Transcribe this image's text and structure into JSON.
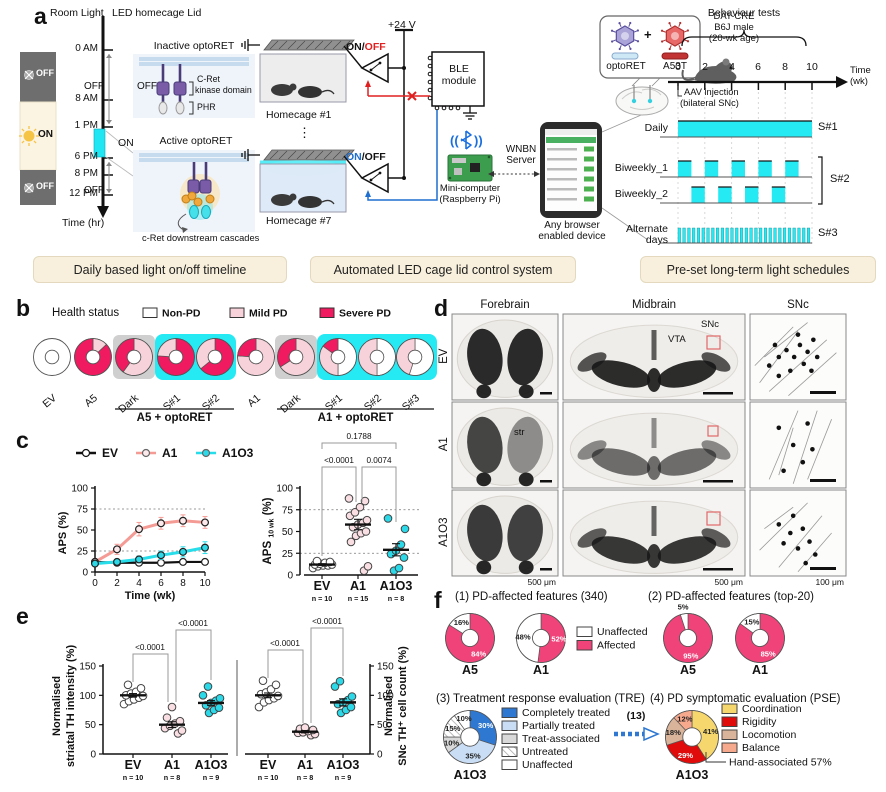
{
  "figure": {
    "panel_labels": {
      "a": "a",
      "b": "b",
      "c": "c",
      "d": "d",
      "e": "e",
      "f": "f"
    }
  },
  "colors": {
    "severe_pd": "#EF1A5F",
    "mild_pd": "#F7D2DA",
    "non_pd": "#FFFFFF",
    "affected": "#F0437A",
    "cyan": "#25E9F3",
    "gray_bg": "#CFCFCF",
    "beige": "#F8F0DC",
    "blue_complete": "#2E78D2",
    "blue_partial": "#C9DDF4",
    "gray_treat": "#D9D9D9",
    "yellow_coordination": "#F5D76E",
    "red_rigidity": "#E00B0B",
    "tan_locomotion": "#D9B49A",
    "salmon_balance": "#F6A98D"
  },
  "panel_a": {
    "room_light": "Room Light",
    "led_lid": "LED homecage Lid",
    "ticks": [
      "0 AM",
      "8 AM",
      "1 PM",
      "6 PM",
      "8 PM",
      "12 PM"
    ],
    "time_hr": "Time (hr)",
    "room_off1": "OFF",
    "room_on": "ON",
    "room_off2": "OFF",
    "lid_off1": "OFF",
    "lid_on": "ON",
    "lid_off2": "OFF",
    "inactive_title": "Inactive optoRET",
    "off_label": "OFF",
    "cret1": "C-Ret",
    "cret2": "kinase domain",
    "phr": "PHR",
    "active_title": "Active optoRET",
    "cascades": "c-Ret downstream cascades",
    "supply": "+24 V",
    "on1": "ON",
    "sep1": "/",
    "off1": "OFF",
    "on2": "ON",
    "sep2": "/",
    "off2": "OFF",
    "ble1": "BLE",
    "ble2": "module",
    "homecage1": "Homecage #1",
    "dots": "⋮",
    "homecage7": "Homecage #7",
    "mini1": "Mini-computer",
    "mini2": "(Raspberry Pi)",
    "wnbn1": "WNBN",
    "wnbn2": "Server",
    "browser1": "Any browser",
    "browser2": "enabled device",
    "virus_opto": "optoRET",
    "plus": "+",
    "virus_a53t": "A53T",
    "mouse1": "DAT-CRE",
    "mouse2": "B6J male",
    "mouse3": "(20-wk age)",
    "aav1": "AAV injection",
    "aav2": "(bilateral SNc)",
    "behaviour": "Behaviour tests",
    "weeks": [
      "0",
      "2",
      "4",
      "6",
      "8",
      "10"
    ],
    "time_wk1": "Time",
    "time_wk2": "(wk)",
    "sched": {
      "daily": "Daily",
      "biw1": "Biweekly_1",
      "biw2": "Biweekly_2",
      "alt1": "Alternate",
      "alt2": "days",
      "s1": "S#1",
      "s2": "S#2",
      "s3": "S#3",
      "patterns": {
        "daily": [
          [
            0,
            10
          ]
        ],
        "biweekly_1": [
          [
            0,
            1
          ],
          [
            2,
            3
          ],
          [
            4,
            5
          ],
          [
            6,
            7
          ],
          [
            8,
            9
          ]
        ],
        "biweekly_2": [
          [
            1,
            2
          ],
          [
            3,
            4
          ],
          [
            5,
            6
          ],
          [
            7,
            8
          ]
        ],
        "alternate_stripes": 28
      }
    },
    "captions": [
      "Daily based light on/off timeline",
      "Automated LED cage lid control system",
      "Pre-set long-term light schedules"
    ]
  },
  "panel_b": {
    "legend_title": "Health status"
  },
  "panel_d": {
    "cols": [
      "Forebrain",
      "Midbrain",
      "SNc"
    ],
    "rows": [
      "EV",
      "A1",
      "A1O3"
    ],
    "vta": "VTA",
    "snc": "SNc",
    "str": "str",
    "scale1": "500 μm",
    "scale2": "500 μm",
    "scale3": "100 μm"
  },
  "panel_f": {
    "t1": "(1) PD-affected features (340)",
    "t2": "(2) PD-affected features (top-20)",
    "t3": "(3) Treatment response evaluation (TRE)",
    "t4": "(4) PD symptomatic evaluation (PSE)"
  },
  "chart_data": [
    {
      "id": "health_status",
      "type": "pie",
      "panel": "b",
      "title": "Health status",
      "legend": [
        {
          "name": "Non-PD",
          "color": "#FFFFFF"
        },
        {
          "name": "Mild PD",
          "color": "#F7D2DA"
        },
        {
          "name": "Severe PD",
          "color": "#EF1A5F"
        }
      ],
      "donuts": [
        {
          "label": "EV",
          "background": "none",
          "segments": [
            {
              "name": "Non-PD",
              "value": 100
            }
          ]
        },
        {
          "label": "A5",
          "background": "none",
          "segments": [
            {
              "name": "Mild PD",
              "value": 13
            },
            {
              "name": "Severe PD",
              "value": 87
            }
          ]
        },
        {
          "label": "Dark",
          "background": "gray",
          "segments": [
            {
              "name": "Mild PD",
              "value": 60
            },
            {
              "name": "Severe PD",
              "value": 40
            }
          ]
        },
        {
          "label": "S#1",
          "background": "cyan",
          "segments": [
            {
              "name": "Severe PD",
              "value": 76
            },
            {
              "name": "Mild PD",
              "value": 24
            }
          ]
        },
        {
          "label": "S#2",
          "background": "cyan",
          "segments": [
            {
              "name": "Severe PD",
              "value": 64
            },
            {
              "name": "Mild PD",
              "value": 36
            }
          ]
        },
        {
          "label": "A1",
          "background": "none",
          "segments": [
            {
              "name": "Mild PD",
              "value": 76
            },
            {
              "name": "Severe PD",
              "value": 24
            }
          ]
        },
        {
          "label": "Dark",
          "background": "gray",
          "segments": [
            {
              "name": "Mild PD",
              "value": 66
            },
            {
              "name": "Severe PD",
              "value": 34
            }
          ]
        },
        {
          "label": "S#1",
          "background": "cyan",
          "segments": [
            {
              "name": "Non-PD",
              "value": 50
            },
            {
              "name": "Mild PD",
              "value": 35
            },
            {
              "name": "Severe PD",
              "value": 15
            }
          ]
        },
        {
          "label": "S#2",
          "background": "cyan",
          "segments": [
            {
              "name": "Non-PD",
              "value": 50
            },
            {
              "name": "Mild PD",
              "value": 50
            }
          ]
        },
        {
          "label": "S#3",
          "background": "cyan",
          "segments": [
            {
              "name": "Non-PD",
              "value": 55
            },
            {
              "name": "Mild PD",
              "value": 45
            }
          ]
        }
      ],
      "groups": [
        {
          "label": "A5 + optoRET",
          "from": 2,
          "to": 4
        },
        {
          "label": "A1 + optoRET",
          "from": 6,
          "to": 9
        }
      ]
    },
    {
      "id": "aps_timecourse",
      "type": "line",
      "panel": "c",
      "xlabel": "Time  (wk)",
      "ylabel": "APS (%)",
      "x": [
        0,
        2,
        4,
        6,
        8,
        10
      ],
      "ylim": [
        0,
        100
      ],
      "yticks": [
        0,
        25,
        50,
        75,
        100
      ],
      "dashed_y": [
        25,
        75
      ],
      "series": [
        {
          "name": "EV",
          "line_color": "#111111",
          "marker_fill": "#FFFFFF",
          "values": [
            12,
            11,
            11,
            11,
            12,
            12
          ],
          "errors": [
            2,
            2,
            2,
            2,
            2,
            3
          ]
        },
        {
          "name": "A1",
          "line_color": "#F59B95",
          "marker_fill": "#FCE9EB",
          "values": [
            12,
            27,
            51,
            58,
            61,
            59
          ],
          "errors": [
            3,
            6,
            8,
            7,
            7,
            7
          ]
        },
        {
          "name": "A1O3",
          "line_color": "#27DDEA",
          "marker_fill": "#2BD9E8",
          "values": [
            10,
            12,
            15,
            20,
            24,
            29
          ],
          "errors": [
            2,
            3,
            4,
            5,
            6,
            7
          ]
        }
      ]
    },
    {
      "id": "aps_10wk",
      "type": "scatter",
      "panel": "c",
      "ylabel_parts": {
        "main": "APS",
        "sub": "10 wk",
        "unit": "(%)"
      },
      "ylim": [
        0,
        100
      ],
      "yticks": [
        0,
        25,
        50,
        75,
        100
      ],
      "dashed_y": [
        25,
        75
      ],
      "groups": [
        {
          "name": "EV",
          "n_label": "n = 10",
          "marker_fill": "#FFFFFF",
          "points": [
            8,
            10,
            11,
            11,
            12,
            12,
            13,
            14,
            15,
            16
          ],
          "mean": 12,
          "sem": 1
        },
        {
          "name": "A1",
          "n_label": "n = 15",
          "marker_fill": "#F9DFE3",
          "points": [
            5,
            10,
            38,
            45,
            48,
            50,
            55,
            58,
            60,
            63,
            68,
            72,
            78,
            85,
            88
          ],
          "mean": 58,
          "sem": 6
        },
        {
          "name": "A1O3",
          "n_label": "n = 8",
          "marker_fill": "#2BD9E8",
          "points": [
            5,
            8,
            20,
            24,
            28,
            35,
            53,
            65
          ],
          "mean": 29,
          "sem": 7
        }
      ],
      "pvalues": [
        {
          "a": "EV",
          "b": "A1",
          "label": "<0.0001"
        },
        {
          "a": "A1",
          "b": "A1O3",
          "label": "0.0074"
        },
        {
          "a": "EV",
          "b": "A1O3",
          "label": "0.1788"
        }
      ]
    },
    {
      "id": "striatal_th",
      "type": "scatter",
      "panel": "e",
      "ylabel_lines": [
        "Normalised",
        "striatal TH intensity (%)"
      ],
      "ylim": [
        0,
        150
      ],
      "yticks": [
        0,
        50,
        100,
        150
      ],
      "groups": [
        {
          "name": "EV",
          "n_label": "n = 10",
          "marker_fill": "#FFFFFF",
          "points": [
            85,
            90,
            93,
            96,
            99,
            100,
            103,
            106,
            112,
            118
          ],
          "mean": 100,
          "sem": 3
        },
        {
          "name": "A1",
          "n_label": "n = 8",
          "marker_fill": "#F9DFE3",
          "points": [
            35,
            40,
            44,
            48,
            52,
            56,
            62,
            80
          ],
          "mean": 50,
          "sem": 5
        },
        {
          "name": "A1O3",
          "n_label": "n = 9",
          "marker_fill": "#2BD9E8",
          "points": [
            70,
            75,
            79,
            83,
            87,
            91,
            95,
            100,
            115
          ],
          "mean": 87,
          "sem": 4
        }
      ],
      "pvalues": [
        {
          "a": "EV",
          "b": "A1",
          "label": "<0.0001"
        },
        {
          "a": "A1",
          "b": "A1O3",
          "label": "<0.0001"
        }
      ]
    },
    {
      "id": "snc_th",
      "type": "scatter",
      "panel": "e",
      "axis_side": "right",
      "ylabel_lines": [
        "Normalised",
        "SNc TH⁺ cell count (%)"
      ],
      "ylim": [
        0,
        150
      ],
      "yticks": [
        0,
        50,
        100,
        150
      ],
      "groups": [
        {
          "name": "EV",
          "n_label": "n = 10",
          "marker_fill": "#FFFFFF",
          "points": [
            80,
            88,
            92,
            95,
            99,
            102,
            105,
            110,
            118,
            125
          ],
          "mean": 100,
          "sem": 4
        },
        {
          "name": "A1",
          "n_label": "n = 8",
          "marker_fill": "#F9DFE3",
          "points": [
            32,
            34,
            36,
            37,
            39,
            41,
            43,
            45
          ],
          "mean": 38,
          "sem": 2
        },
        {
          "name": "A1O3",
          "n_label": "n = 9",
          "marker_fill": "#2BD9E8",
          "points": [
            70,
            75,
            80,
            85,
            88,
            92,
            98,
            115,
            124
          ],
          "mean": 88,
          "sem": 6
        }
      ],
      "pvalues": [
        {
          "a": "EV",
          "b": "A1",
          "label": "<0.0001"
        },
        {
          "a": "A1",
          "b": "A1O3",
          "label": "<0.0001"
        }
      ]
    },
    {
      "id": "pd_features_340",
      "type": "pie",
      "panel": "f",
      "legend": [
        {
          "name": "Unaffected",
          "color": "#FFFFFF"
        },
        {
          "name": "Affected",
          "color": "#F0437A"
        }
      ],
      "donuts": [
        {
          "label": "A5",
          "segments": [
            {
              "name": "Affected",
              "value": 84,
              "pct": "84%"
            },
            {
              "name": "Unaffected",
              "value": 16,
              "pct": "16%"
            }
          ]
        },
        {
          "label": "A1",
          "segments": [
            {
              "name": "Affected",
              "value": 52,
              "pct": "52%"
            },
            {
              "name": "Unaffected",
              "value": 48,
              "pct": "48%"
            }
          ]
        }
      ]
    },
    {
      "id": "pd_features_top20",
      "type": "pie",
      "panel": "f",
      "donuts": [
        {
          "label": "A5",
          "segments": [
            {
              "name": "Affected",
              "value": 95,
              "pct": "95%"
            },
            {
              "name": "Unaffected",
              "value": 5,
              "pct": "5%"
            }
          ]
        },
        {
          "label": "A1",
          "segments": [
            {
              "name": "Affected",
              "value": 85,
              "pct": "85%"
            },
            {
              "name": "Unaffected",
              "value": 15,
              "pct": "15%"
            }
          ]
        }
      ]
    },
    {
      "id": "tre",
      "type": "pie",
      "panel": "f",
      "legend": [
        {
          "name": "Completely treated",
          "color": "#2E78D2"
        },
        {
          "name": "Partially treated",
          "color": "#C9DDF4"
        },
        {
          "name": "Treat-associated",
          "color": "#D9D9D9"
        },
        {
          "name": "Untreated",
          "color": "hatch"
        },
        {
          "name": "Unaffected",
          "color": "#FFFFFF"
        }
      ],
      "donuts": [
        {
          "label": "A1O3",
          "segments": [
            {
              "name": "Completely treated",
              "value": 30,
              "pct": "30%"
            },
            {
              "name": "Partially treated",
              "value": 35,
              "pct": "35%"
            },
            {
              "name": "Treat-associated",
              "value": 10,
              "pct": "10%"
            },
            {
              "name": "Untreated",
              "value": 15,
              "pct": "15%"
            },
            {
              "name": "Unaffected",
              "value": 10,
              "pct": "10%"
            }
          ]
        }
      ]
    },
    {
      "id": "pse",
      "type": "pie",
      "panel": "f",
      "arrow_label": "(13)",
      "annotation": "Hand-associated 57%",
      "legend": [
        {
          "name": "Coordination",
          "color": "#F5D76E"
        },
        {
          "name": "Rigidity",
          "color": "#E00B0B"
        },
        {
          "name": "Locomotion",
          "color": "#D9B49A"
        },
        {
          "name": "Balance",
          "color": "#F6A98D"
        }
      ],
      "donuts": [
        {
          "label": "A1O3",
          "segments": [
            {
              "name": "Coordination",
              "value": 41,
              "pct": "41%"
            },
            {
              "name": "Rigidity",
              "value": 29,
              "pct": "29%"
            },
            {
              "name": "Locomotion",
              "value": 18,
              "pct": "18%"
            },
            {
              "name": "Balance",
              "value": 12,
              "pct": "12%"
            }
          ]
        }
      ]
    }
  ]
}
